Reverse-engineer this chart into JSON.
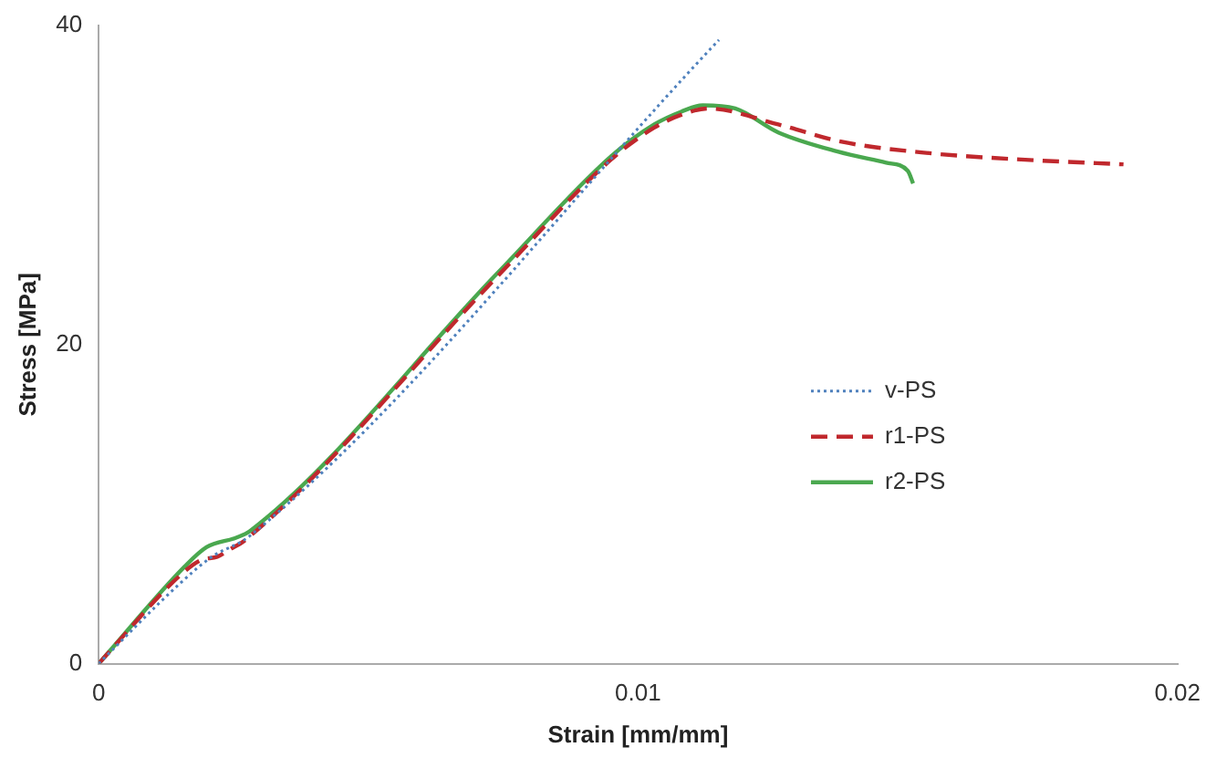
{
  "chart_data": {
    "type": "line",
    "xlabel": "Strain [mm/mm]",
    "ylabel": "Stress [MPa]",
    "xlim": [
      0,
      0.02
    ],
    "xticks": [
      0,
      0.01,
      0.02
    ],
    "ylim": [
      0,
      40
    ],
    "yticks": [
      0,
      20,
      40
    ],
    "grid": false,
    "legend": "right",
    "marker": "none",
    "series": [
      {
        "name": "v-PS",
        "color": "#4f81bd",
        "line_style": "dotted",
        "x": [
          0,
          0.0015,
          0.0021,
          0.0028,
          0.0115
        ],
        "values": [
          0,
          5.0,
          6.7,
          8.0,
          39.1
        ]
      },
      {
        "name": "r1-PS",
        "color": "#c0282d",
        "line_style": "dashed",
        "x": [
          0,
          0.0015,
          0.0019,
          0.0022,
          0.00245,
          0.0027,
          0.0074,
          0.0095,
          0.0103,
          0.0108,
          0.0113,
          0.0126,
          0.0138,
          0.0154,
          0.0171,
          0.019
        ],
        "values": [
          0,
          5.5,
          6.5,
          6.7,
          7.2,
          7.7,
          24.3,
          31.6,
          33.6,
          34.4,
          34.8,
          33.8,
          32.7,
          32.0,
          31.6,
          31.3
        ]
      },
      {
        "name": "r2-PS",
        "color": "#4aa84f",
        "line_style": "solid",
        "x": [
          0,
          0.0016,
          0.002,
          0.00255,
          0.0028,
          0.0074,
          0.0095,
          0.0103,
          0.0108,
          0.0112,
          0.0118,
          0.0126,
          0.0137,
          0.0146,
          0.015,
          0.0151
        ],
        "values": [
          0,
          6.1,
          7.3,
          7.9,
          8.3,
          24.5,
          31.8,
          33.8,
          34.6,
          35.0,
          34.8,
          33.3,
          32.1,
          31.4,
          30.9,
          30.1
        ]
      }
    ]
  }
}
